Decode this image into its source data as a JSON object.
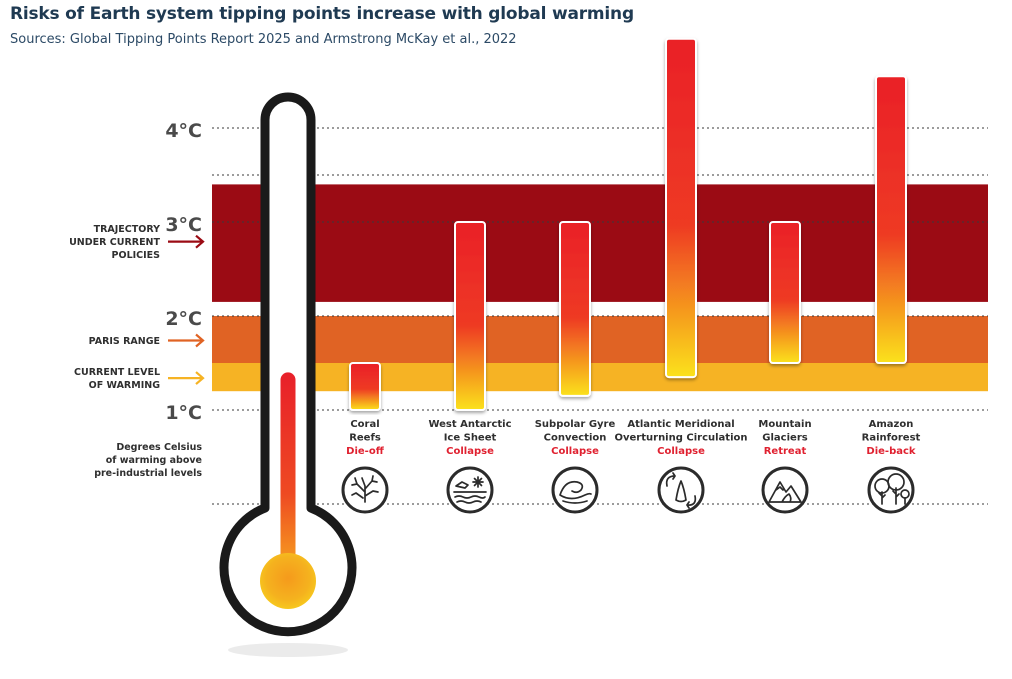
{
  "title": "Risks of Earth system tipping points increase with global warming",
  "subtitle": "Sources: Global Tipping Points Report 2025 and Armstrong McKay et al., 2022",
  "colors": {
    "trajectory_band": "#9b0b14",
    "paris_band": "#e06324",
    "current_band": "#f6b324",
    "bar_top": "#ea2027",
    "bar_bottom": "#fbe21a",
    "thermometer": "#1a1a1a",
    "label_dark": "#2f2f2f",
    "label_red": "#e02130"
  },
  "chart_data": {
    "type": "bar",
    "ylabel": "Degrees Celsius of warming above pre-industrial levels",
    "ylim": [
      0.6,
      4.95
    ],
    "grid": true,
    "y_ticks": [
      {
        "value": 1,
        "label": "1°C"
      },
      {
        "value": 2,
        "label": "2°C"
      },
      {
        "value": 3,
        "label": "3°C"
      },
      {
        "value": 4,
        "label": "4°C"
      }
    ],
    "extra_gridlines": [
      0,
      3.5
    ],
    "bands": [
      {
        "label": "TRAJECTORY UNDER CURRENT POLICIES",
        "lines": [
          "TRAJECTORY",
          "UNDER CURRENT",
          "POLICIES"
        ],
        "from": 2.15,
        "to": 3.4,
        "color": "#9b0b14"
      },
      {
        "label": "PARIS RANGE",
        "lines": [
          "PARIS RANGE"
        ],
        "from": 1.5,
        "to": 2.0,
        "color": "#e06324"
      },
      {
        "label": "CURRENT LEVEL OF WARMING",
        "lines": [
          "CURRENT LEVEL",
          "OF WARMING"
        ],
        "from": 1.2,
        "to": 1.5,
        "color": "#f6b324"
      }
    ],
    "thermometer_level": 1.4,
    "categories": [
      {
        "name_lines": [
          "Coral",
          "Reefs"
        ],
        "effect": "Die-off",
        "low": 1.0,
        "high": 1.5,
        "icon": "coral-icon"
      },
      {
        "name_lines": [
          "West Antarctic",
          "Ice Sheet"
        ],
        "effect": "Collapse",
        "low": 1.0,
        "high": 3.0,
        "icon": "ice-sheet-icon"
      },
      {
        "name_lines": [
          "Subpolar Gyre",
          "Convection"
        ],
        "effect": "Collapse",
        "low": 1.15,
        "high": 3.0,
        "icon": "wave-icon"
      },
      {
        "name_lines": [
          "Atlantic Meridional",
          "Overturning Circulation"
        ],
        "effect": "Collapse",
        "low": 1.35,
        "high": 4.95,
        "icon": "circulation-icon"
      },
      {
        "name_lines": [
          "Mountain",
          "Glaciers"
        ],
        "effect": "Retreat",
        "low": 1.5,
        "high": 3.0,
        "icon": "mountain-icon"
      },
      {
        "name_lines": [
          "Amazon",
          "Rainforest"
        ],
        "effect": "Die-back",
        "low": 1.5,
        "high": 4.55,
        "icon": "trees-icon"
      }
    ]
  }
}
